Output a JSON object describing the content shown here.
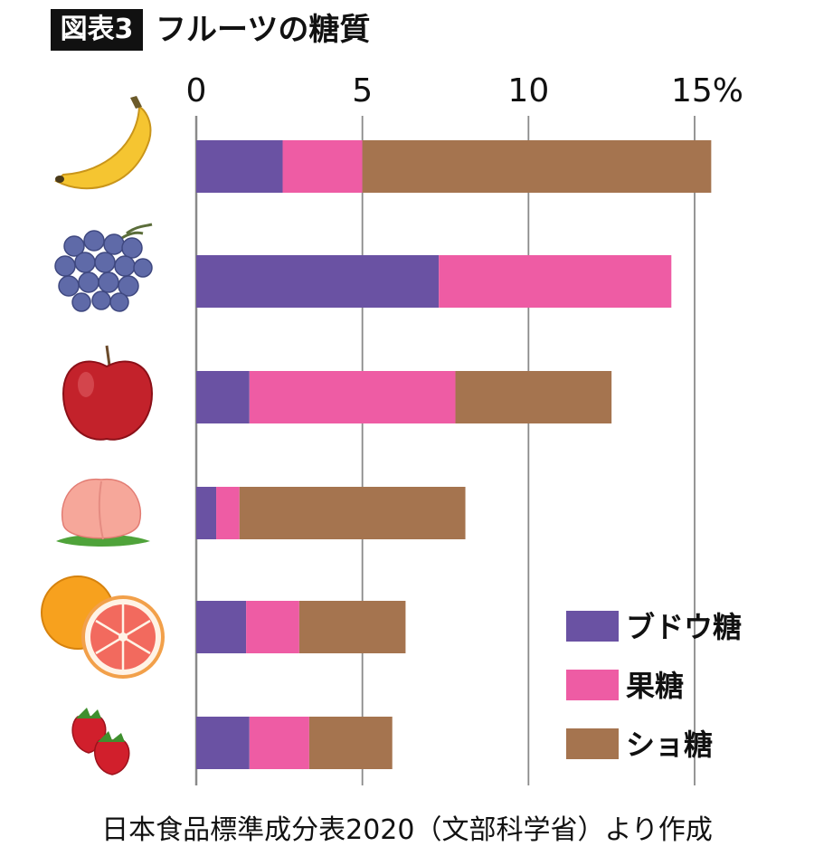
{
  "figure": {
    "tag": "図表3",
    "title": "フルーツの糖質",
    "source": "日本食品標準成分表2020（文部科学省）より作成"
  },
  "chart_data": {
    "type": "bar",
    "orientation": "horizontal",
    "stacked": true,
    "categories": [
      "banana",
      "grape",
      "apple",
      "peach",
      "grapefruit",
      "strawberry"
    ],
    "x_ticks": [
      "0",
      "5",
      "10",
      "15%"
    ],
    "xlim": [
      0,
      15
    ],
    "grid": true,
    "legend_position": "bottom-right",
    "series": [
      {
        "name": "ブドウ糖",
        "color": "#6a52a3",
        "values": [
          2.6,
          7.3,
          1.6,
          0.6,
          1.5,
          1.6
        ]
      },
      {
        "name": "果糖",
        "color": "#ee5ca4",
        "values": [
          2.4,
          7.0,
          6.2,
          0.7,
          1.6,
          1.8
        ]
      },
      {
        "name": "ショ糖",
        "color": "#a5744f",
        "values": [
          10.5,
          0.0,
          4.7,
          6.8,
          3.2,
          2.5
        ]
      }
    ]
  },
  "colors": {
    "grid": "#8a8a8a",
    "axis": "#8a8a8a"
  },
  "icons": [
    "banana-icon",
    "grape-icon",
    "apple-icon",
    "peach-icon",
    "grapefruit-icon",
    "strawberry-icon"
  ]
}
